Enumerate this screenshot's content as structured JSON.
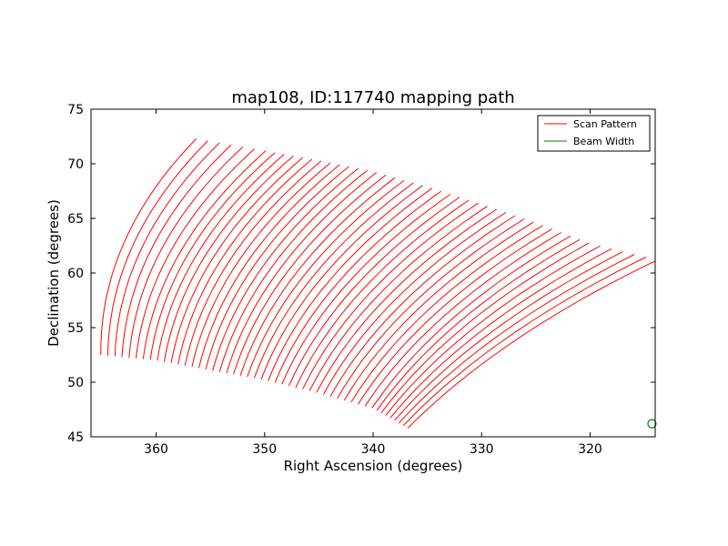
{
  "chart_data": {
    "type": "line",
    "title": "map108, ID:117740 mapping path",
    "xlabel": "Right Ascension (degrees)",
    "ylabel": "Declination (degrees)",
    "xlim": [
      366,
      314
    ],
    "ylim": [
      45,
      75
    ],
    "x_inverted": true,
    "xticks": [
      360,
      350,
      340,
      330,
      320
    ],
    "yticks": [
      45,
      50,
      55,
      60,
      65,
      70,
      75
    ],
    "grid": false,
    "legend": {
      "position": "upper right"
    },
    "series": [
      {
        "name": "Scan Pattern",
        "color": "#ff0000",
        "description_points": {
          "first_scan": {
            "ra": [
              365.1,
              364.0,
              361.5,
              358.5,
              356.3
            ],
            "dec": [
              52.5,
              56.0,
              63.0,
              69.5,
              72.3
            ]
          },
          "last_scan": {
            "ra": [
              336.8,
              334.0,
              330.0,
              325.0,
              320.0,
              313.8
            ],
            "dec": [
              45.8,
              48.5,
              51.5,
              54.5,
              57.8,
              61.2
            ]
          },
          "top_envelope": {
            "ra": [
              356.3,
              350.0,
              345.0,
              340.0,
              335.0,
              330.0,
              325.0,
              320.0,
              313.8
            ],
            "dec": [
              72.3,
              71.2,
              70.3,
              69.3,
              67.9,
              66.3,
              64.6,
              62.7,
              61.2
            ]
          },
          "bottom_envelope": {
            "ra": [
              365.1,
              360.0,
              355.0,
              350.0,
              345.0,
              340.0,
              336.8
            ],
            "dec": [
              52.5,
              52.0,
              51.1,
              50.2,
              49.0,
              47.6,
              45.8
            ]
          }
        },
        "n_scans": 48
      },
      {
        "name": "Beam Width",
        "color": "#008000",
        "marker": "circle",
        "points": [
          {
            "ra": 314.3,
            "dec": 46.2
          }
        ]
      }
    ]
  }
}
